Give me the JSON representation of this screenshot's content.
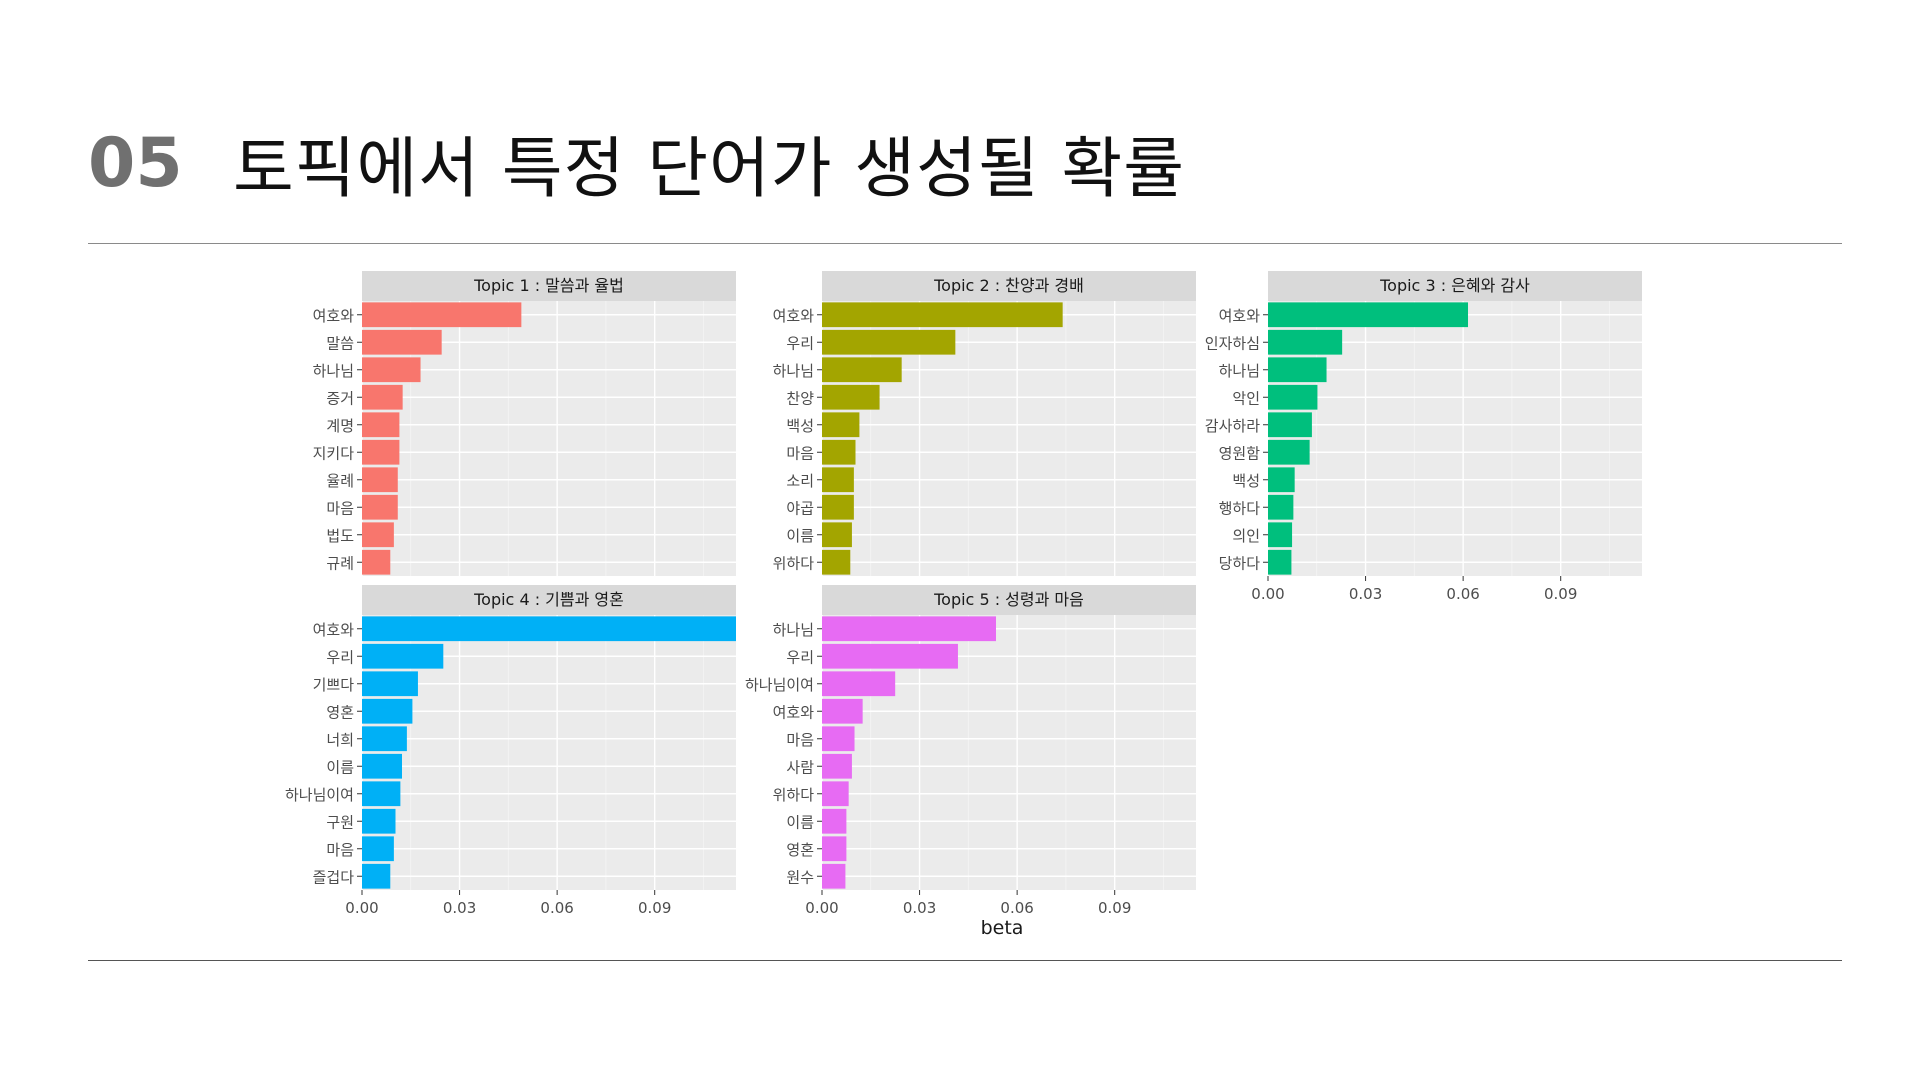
{
  "slide": {
    "number": "05",
    "title": "토픽에서 특정 단어가 생성될 확률"
  },
  "chart_data": {
    "type": "bar",
    "orientation": "horizontal",
    "xlabel": "beta",
    "ylabel": "",
    "xlim": [
      0,
      0.115
    ],
    "xticks": [
      "0.00",
      "0.03",
      "0.06",
      "0.09"
    ],
    "grid": true,
    "legend": "none",
    "panels": [
      {
        "strip": "Topic 1 :  말씀과 율법",
        "color": "#F8766D",
        "categories": [
          "여호와",
          "말씀",
          "하나님",
          "증거",
          "계명",
          "지키다",
          "율례",
          "마음",
          "법도",
          "규례"
        ],
        "values": [
          0.049,
          0.0245,
          0.018,
          0.0125,
          0.0115,
          0.0115,
          0.011,
          0.011,
          0.0098,
          0.0087
        ]
      },
      {
        "strip": "Topic 2 :  찬양과 경배",
        "color": "#A3A500",
        "categories": [
          "여호와",
          "우리",
          "하나님",
          "찬양",
          "백성",
          "마음",
          "소리",
          "야곱",
          "이름",
          "위하다"
        ],
        "values": [
          0.074,
          0.041,
          0.0245,
          0.0177,
          0.0115,
          0.0103,
          0.0098,
          0.0098,
          0.0092,
          0.0087
        ]
      },
      {
        "strip": "Topic 3 :  은혜와 감사",
        "color": "#00BF7D",
        "categories": [
          "여호와",
          "인자하심",
          "하나님",
          "악인",
          "감사하라",
          "영원함",
          "백성",
          "행하다",
          "의인",
          "당하다"
        ],
        "values": [
          0.0615,
          0.0228,
          0.018,
          0.0152,
          0.0135,
          0.0128,
          0.0082,
          0.0078,
          0.0074,
          0.0072
        ]
      },
      {
        "strip": "Topic 4 :  기쁨과 영혼",
        "color": "#00B0F6",
        "categories": [
          "여호와",
          "우리",
          "기쁘다",
          "영혼",
          "너희",
          "이름",
          "하나님이여",
          "구원",
          "마음",
          "즐겁다"
        ],
        "values": [
          0.117,
          0.025,
          0.0172,
          0.0155,
          0.0138,
          0.0123,
          0.0118,
          0.0103,
          0.0098,
          0.0087
        ]
      },
      {
        "strip": "Topic 5 :  성령과 마음",
        "color": "#E76BF3",
        "categories": [
          "하나님",
          "우리",
          "하나님이여",
          "여호와",
          "마음",
          "사람",
          "위하다",
          "이름",
          "영혼",
          "원수"
        ],
        "values": [
          0.0535,
          0.0418,
          0.0225,
          0.0125,
          0.01,
          0.0092,
          0.0082,
          0.0075,
          0.0075,
          0.0072
        ]
      }
    ]
  }
}
